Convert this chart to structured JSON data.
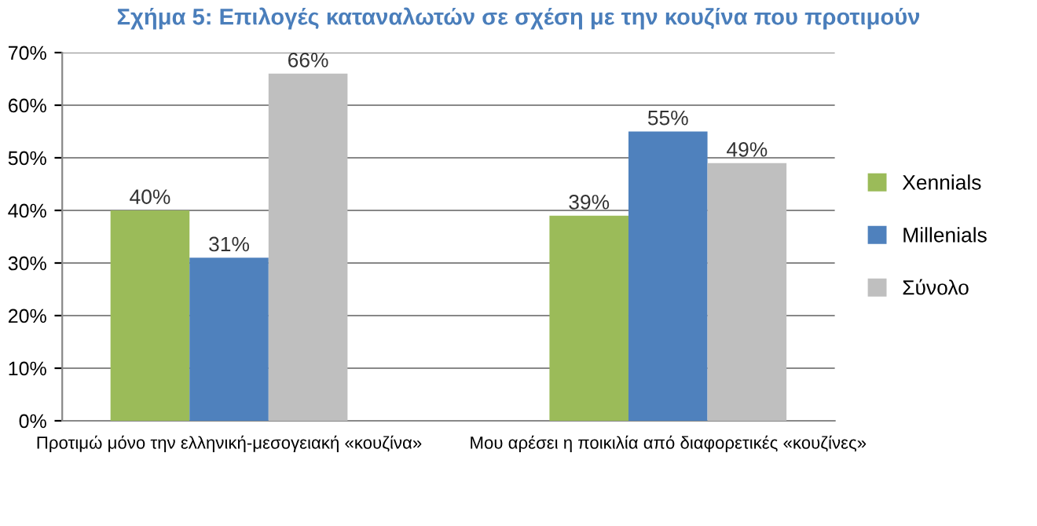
{
  "chart_data": {
    "type": "bar",
    "title": "Σχήμα 5: Επιλογές καταναλωτών σε σχέση με την κουζίνα που προτιμούν",
    "categories": [
      "Προτιμώ μόνο την ελληνική-μεσογειακή «κουζίνα»",
      "Μου αρέσει η ποικιλία από διαφορετικές «κουζίνες»"
    ],
    "series": [
      {
        "name": "Xennials",
        "color": "#9bbb59",
        "values": [
          40,
          39
        ]
      },
      {
        "name": "Millenials",
        "color": "#4f81bd",
        "values": [
          31,
          55
        ]
      },
      {
        "name": "Σύνολο",
        "color": "#bfbfbf",
        "values": [
          66,
          49
        ]
      }
    ],
    "ylim": [
      0,
      70
    ],
    "yticks": [
      {
        "value": 0,
        "label": "0%"
      },
      {
        "value": 10,
        "label": "10%"
      },
      {
        "value": 20,
        "label": "20%"
      },
      {
        "value": 30,
        "label": "30%"
      },
      {
        "value": 40,
        "label": "40%"
      },
      {
        "value": 50,
        "label": "50%"
      },
      {
        "value": 60,
        "label": "60%"
      },
      {
        "value": 70,
        "label": "70%"
      }
    ],
    "value_labels": [
      [
        "40%",
        "39%"
      ],
      [
        "31%",
        "55%"
      ],
      [
        "66%",
        "49%"
      ]
    ],
    "grid": "y",
    "legend": "right"
  }
}
